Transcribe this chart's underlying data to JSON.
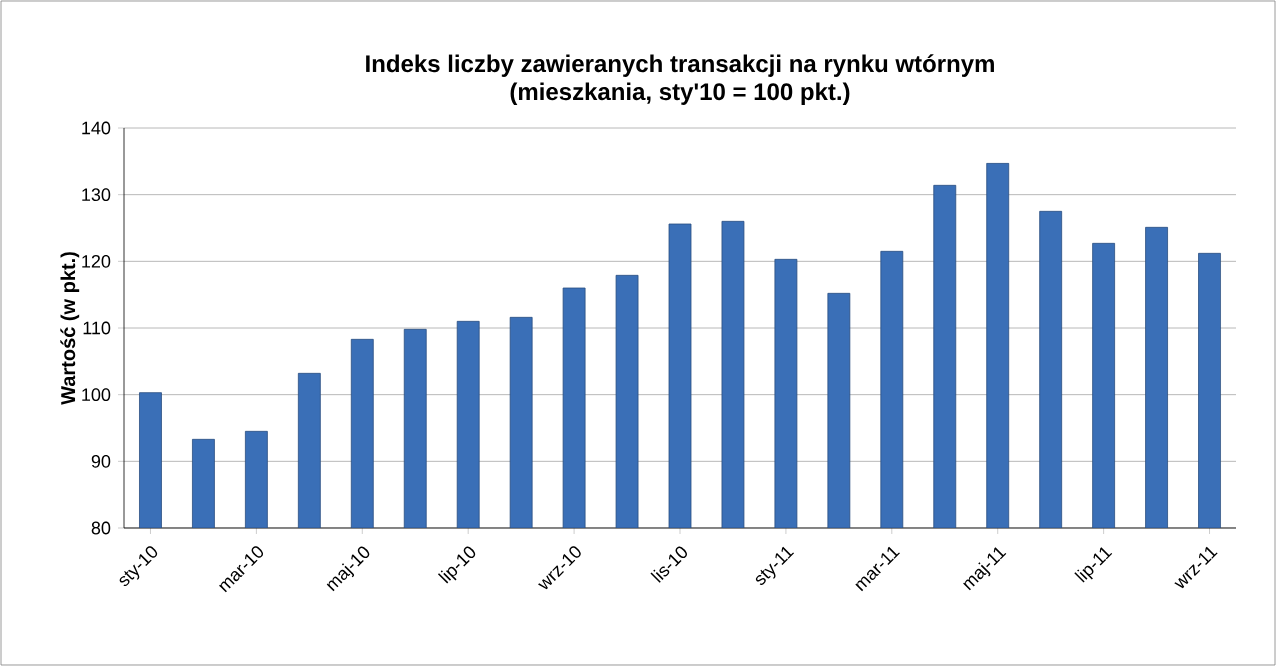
{
  "chart_data": {
    "type": "bar",
    "title": "Indeks liczby zawieranych transakcji na rynku wtórnym\n(mieszkania, sty'10 = 100 pkt.)",
    "ylabel": "Wartość (w pkt.)",
    "categories": [
      "sty-10",
      null,
      "mar-10",
      null,
      "maj-10",
      null,
      "lip-10",
      null,
      "wrz-10",
      null,
      "lis-10",
      null,
      "sty-11",
      null,
      "mar-11",
      null,
      "maj-11",
      null,
      "lip-11",
      null,
      "wrz-11"
    ],
    "values": [
      100.3,
      93.3,
      94.5,
      103.2,
      108.3,
      109.8,
      111,
      111.6,
      116,
      117.9,
      125.6,
      126,
      120.3,
      115.2,
      121.5,
      131.4,
      134.7,
      127.5,
      122.7,
      125.1,
      121.2
    ],
    "color": "#3a6fb7",
    "ylim": [
      80,
      140
    ],
    "yticks": [
      80,
      90,
      100,
      110,
      120,
      130,
      140
    ],
    "grid": "y"
  }
}
